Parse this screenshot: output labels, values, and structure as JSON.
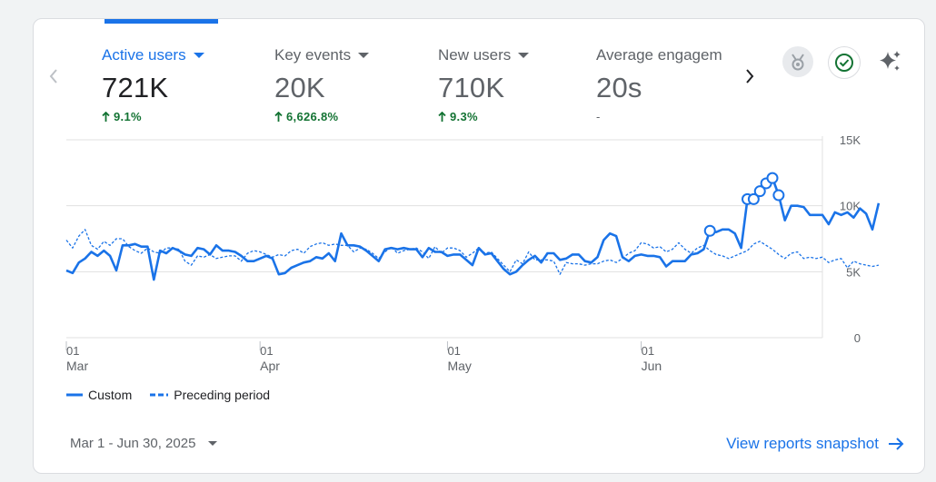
{
  "metrics": [
    {
      "label": "Active users",
      "value": "721K",
      "change": "9.1%",
      "trend": "up"
    },
    {
      "label": "Key events",
      "value": "20K",
      "change": "6,626.8%",
      "trend": "up"
    },
    {
      "label": "New users",
      "value": "710K",
      "change": "9.3%",
      "trend": "up"
    },
    {
      "label": "Average engagem",
      "value": "20s",
      "change": "-",
      "trend": "none"
    }
  ],
  "footer": {
    "date_range": "Mar 1 - Jun 30, 2025",
    "snapshot_link": "View reports snapshot"
  },
  "colors": {
    "primary": "#1a73e8",
    "positive": "#137333"
  },
  "icons": [
    "chevron-left-icon",
    "chevron-right-icon",
    "insights-badge-icon",
    "check-circle-icon",
    "sparkle-icon"
  ],
  "chart_data": {
    "type": "line",
    "x_start": "2025-03-01",
    "x_end": "2025-06-30",
    "ylim": [
      0,
      15000
    ],
    "y_ticks": [
      {
        "value": 15000,
        "label": "15K"
      },
      {
        "value": 10000,
        "label": "10K"
      },
      {
        "value": 5000,
        "label": "5K"
      },
      {
        "value": 0,
        "label": "0"
      }
    ],
    "x_ticks": [
      {
        "date": "2025-03-01",
        "day": "01",
        "month": "Mar"
      },
      {
        "date": "2025-04-01",
        "day": "01",
        "month": "Apr"
      },
      {
        "date": "2025-05-01",
        "day": "01",
        "month": "May"
      },
      {
        "date": "2025-06-01",
        "day": "01",
        "month": "Jun"
      }
    ],
    "grid": true,
    "legend_position": "bottom-left",
    "series": [
      {
        "name": "Custom",
        "style": "solid",
        "values": [
          5100,
          4900,
          5700,
          6000,
          6500,
          6200,
          6600,
          6200,
          5100,
          7000,
          7000,
          7100,
          6900,
          6900,
          4400,
          6600,
          6400,
          6800,
          6600,
          6300,
          6200,
          6800,
          6700,
          6300,
          7000,
          6600,
          6600,
          6500,
          6200,
          5800,
          5800,
          6000,
          6200,
          6000,
          4800,
          4900,
          5300,
          5500,
          5700,
          5800,
          6100,
          6000,
          6400,
          5800,
          7900,
          7000,
          7000,
          6900,
          6600,
          6200,
          5800,
          6700,
          6800,
          6700,
          6800,
          6700,
          6700,
          6100,
          6800,
          6500,
          6500,
          6200,
          6300,
          6300,
          5900,
          5500,
          6800,
          6300,
          6400,
          5800,
          5200,
          4800,
          5000,
          5500,
          5900,
          6200,
          5700,
          6400,
          6400,
          5900,
          6000,
          6300,
          6300,
          5800,
          5700,
          6100,
          7400,
          7900,
          7700,
          6100,
          5800,
          6200,
          6300,
          6200,
          6200,
          6100,
          5400,
          5800,
          5800,
          5800,
          6300,
          6400,
          6700,
          8100,
          8000,
          8200,
          8200,
          7900,
          6800,
          10500,
          10500,
          11100,
          11700,
          12100,
          10800,
          8900,
          10000,
          10000,
          9900,
          9300,
          9300,
          9300,
          8600,
          9500,
          9300,
          9500,
          9100,
          9800,
          9400,
          8200,
          10200
        ],
        "marked_points": [
          103,
          109,
          110,
          111,
          112,
          113,
          114
        ]
      },
      {
        "name": "Preceding period",
        "style": "dashed",
        "values": [
          7400,
          6800,
          7700,
          8200,
          7000,
          6700,
          7300,
          7000,
          7500,
          7500,
          6900,
          6600,
          6400,
          6800,
          6500,
          6400,
          6800,
          6800,
          6700,
          5800,
          5500,
          6200,
          6100,
          6300,
          6000,
          6100,
          6200,
          6200,
          5800,
          6400,
          6600,
          6500,
          6300,
          6100,
          6300,
          6200,
          6600,
          6700,
          6400,
          6900,
          7100,
          7200,
          7000,
          7100,
          7000,
          7000,
          6500,
          6800,
          6700,
          6400,
          6000,
          6500,
          6900,
          6400,
          6600,
          6700,
          6800,
          6500,
          6000,
          6900,
          6400,
          6800,
          6800,
          6600,
          6100,
          6400,
          6800,
          6400,
          6500,
          6000,
          5500,
          5000,
          5900,
          5600,
          6500,
          5900,
          5900,
          5900,
          5800,
          4800,
          5700,
          5600,
          5600,
          5500,
          5600,
          5600,
          5800,
          5900,
          5700,
          6000,
          6400,
          6600,
          7200,
          7100,
          6800,
          6900,
          6500,
          6700,
          7200,
          6700,
          6400,
          6800,
          7000,
          6600,
          6300,
          6200,
          6000,
          6200,
          6400,
          6600,
          7100,
          7300,
          7000,
          6700,
          6300,
          6000,
          6400,
          6500,
          6000,
          6100,
          6000,
          6100,
          5700,
          5900,
          6000,
          5300,
          5800,
          5600,
          5500,
          5400,
          5500
        ]
      }
    ]
  }
}
